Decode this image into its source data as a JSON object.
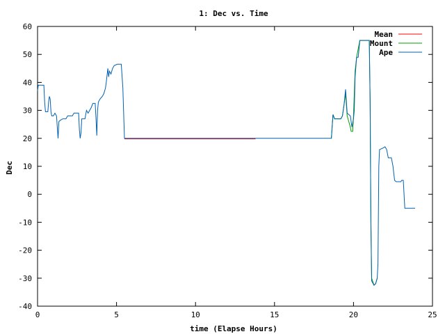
{
  "chart_data": {
    "type": "line",
    "title": "1: Dec vs. Time",
    "xlabel": "time (Elapse Hours)",
    "ylabel": "Dec",
    "xlim": [
      0,
      25
    ],
    "ylim": [
      -40,
      60
    ],
    "xticks": [
      0,
      5,
      10,
      15,
      20,
      25
    ],
    "yticks": [
      -40,
      -30,
      -20,
      -10,
      0,
      10,
      20,
      30,
      40,
      50,
      60
    ],
    "grid": false,
    "legend_position": "top-right",
    "series": [
      {
        "name": "Mean",
        "color": "#ff0000",
        "points": [
          [
            5.5,
            19.8
          ],
          [
            13.8,
            19.8
          ]
        ]
      },
      {
        "name": "Mount",
        "color": "#00a000",
        "points": [
          [
            18.6,
            20
          ],
          [
            18.7,
            28.5
          ],
          [
            18.8,
            27
          ],
          [
            19.2,
            27
          ],
          [
            19.3,
            28
          ],
          [
            19.4,
            32
          ],
          [
            19.5,
            36
          ],
          [
            19.6,
            28
          ],
          [
            19.7,
            26
          ],
          [
            19.8,
            24
          ],
          [
            19.85,
            22.5
          ],
          [
            19.95,
            22.5
          ],
          [
            20.0,
            28
          ],
          [
            20.1,
            44
          ],
          [
            20.2,
            49
          ],
          [
            20.4,
            55
          ],
          [
            21.0,
            55
          ],
          [
            21.05,
            34
          ],
          [
            21.1,
            -8
          ],
          [
            21.15,
            -30
          ],
          [
            21.3,
            -32.5
          ],
          [
            21.4,
            -32
          ],
          [
            21.5,
            -30
          ]
        ]
      },
      {
        "name": "Ape",
        "color": "#0060b0",
        "points": [
          [
            0.0,
            37
          ],
          [
            0.05,
            39
          ],
          [
            0.2,
            39
          ],
          [
            0.4,
            39
          ],
          [
            0.45,
            33
          ],
          [
            0.5,
            29.5
          ],
          [
            0.65,
            29.5
          ],
          [
            0.7,
            33
          ],
          [
            0.75,
            35
          ],
          [
            0.8,
            34
          ],
          [
            0.85,
            29.5
          ],
          [
            0.9,
            28
          ],
          [
            1.0,
            28
          ],
          [
            1.1,
            29
          ],
          [
            1.2,
            28
          ],
          [
            1.25,
            24
          ],
          [
            1.3,
            20
          ],
          [
            1.35,
            26
          ],
          [
            1.45,
            26.5
          ],
          [
            1.6,
            27
          ],
          [
            1.8,
            27
          ],
          [
            1.9,
            28
          ],
          [
            2.2,
            28
          ],
          [
            2.3,
            29
          ],
          [
            2.6,
            29
          ],
          [
            2.65,
            23
          ],
          [
            2.7,
            20
          ],
          [
            2.75,
            22
          ],
          [
            2.8,
            27
          ],
          [
            3.0,
            27
          ],
          [
            3.1,
            30
          ],
          [
            3.2,
            29
          ],
          [
            3.4,
            31
          ],
          [
            3.5,
            32.5
          ],
          [
            3.65,
            32.5
          ],
          [
            3.7,
            27
          ],
          [
            3.75,
            21
          ],
          [
            3.8,
            30
          ],
          [
            3.85,
            33
          ],
          [
            3.95,
            34
          ],
          [
            4.1,
            35
          ],
          [
            4.2,
            36
          ],
          [
            4.3,
            38
          ],
          [
            4.35,
            40
          ],
          [
            4.45,
            45
          ],
          [
            4.5,
            42
          ],
          [
            4.55,
            44
          ],
          [
            4.65,
            43
          ],
          [
            4.75,
            45
          ],
          [
            4.85,
            46
          ],
          [
            5.05,
            46.5
          ],
          [
            5.3,
            46.5
          ],
          [
            5.4,
            38
          ],
          [
            5.5,
            20
          ],
          [
            18.6,
            20
          ],
          [
            18.7,
            28.5
          ],
          [
            18.8,
            27
          ],
          [
            19.2,
            27
          ],
          [
            19.3,
            28
          ],
          [
            19.4,
            32
          ],
          [
            19.5,
            37.5
          ],
          [
            19.6,
            29
          ],
          [
            19.7,
            28.5
          ],
          [
            19.8,
            28
          ],
          [
            19.9,
            24
          ],
          [
            20.0,
            27
          ],
          [
            20.05,
            30
          ],
          [
            20.1,
            42
          ],
          [
            20.2,
            49
          ],
          [
            20.3,
            49
          ],
          [
            20.4,
            55
          ],
          [
            21.0,
            55
          ],
          [
            21.05,
            33
          ],
          [
            21.1,
            -10
          ],
          [
            21.15,
            -31
          ],
          [
            21.3,
            -32.5
          ],
          [
            21.4,
            -32
          ],
          [
            21.5,
            -30
          ],
          [
            21.55,
            -25
          ],
          [
            21.6,
            10
          ],
          [
            21.65,
            16
          ],
          [
            21.85,
            16.5
          ],
          [
            22.0,
            17
          ],
          [
            22.1,
            16
          ],
          [
            22.2,
            13
          ],
          [
            22.4,
            13
          ],
          [
            22.5,
            10
          ],
          [
            22.6,
            5
          ],
          [
            22.7,
            4.5
          ],
          [
            23.0,
            4.5
          ],
          [
            23.05,
            5
          ],
          [
            23.15,
            5
          ],
          [
            23.2,
            0
          ],
          [
            23.25,
            -5
          ],
          [
            23.9,
            -5
          ]
        ]
      }
    ]
  }
}
